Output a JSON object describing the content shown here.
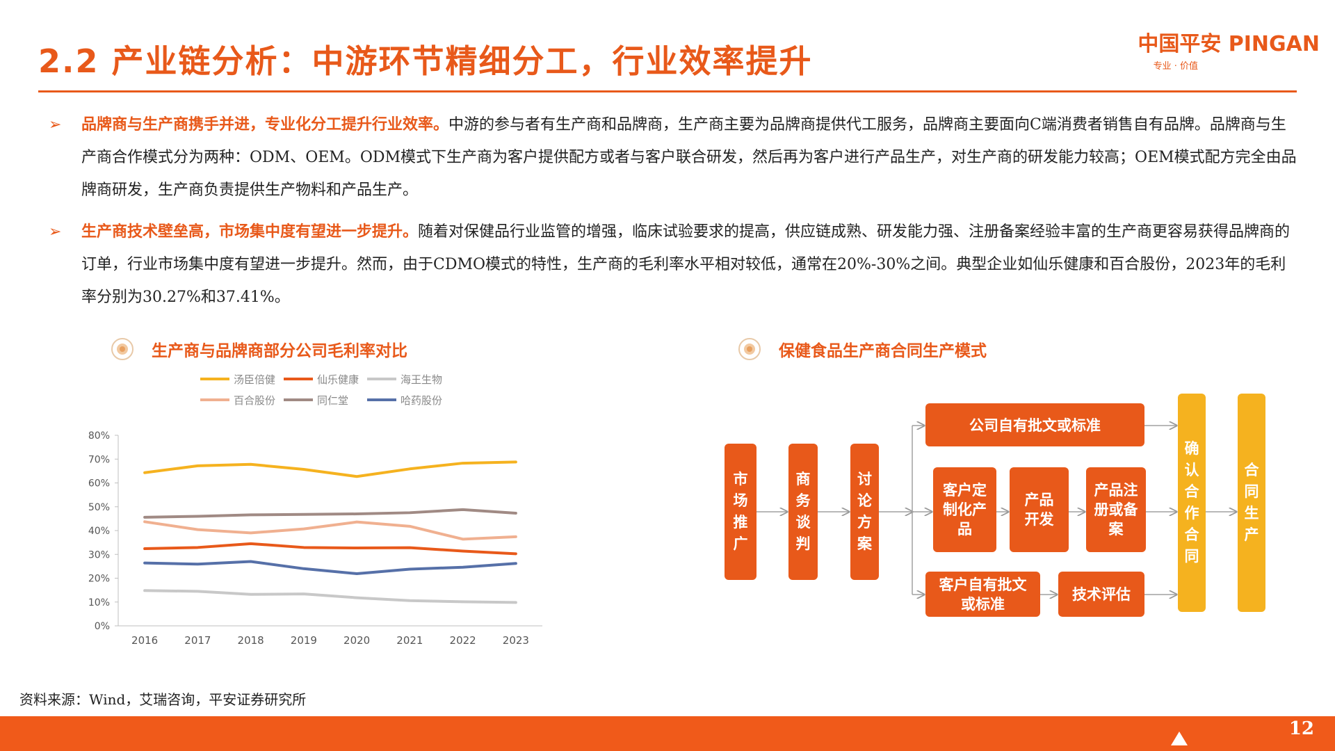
{
  "header": {
    "title": "2.2 产业链分析：中游环节精细分工，行业效率提升",
    "logo_main": "中国平安 PINGAN",
    "logo_sub": "专业 · 价值"
  },
  "bullets": [
    {
      "marker": "➢",
      "highlight": "品牌商与生产商携手并进，专业化分工提升行业效率。",
      "text": "中游的参与者有生产商和品牌商，生产商主要为品牌商提供代工服务，品牌商主要面向C端消费者销售自有品牌。品牌商与生产商合作模式分为两种：ODM、OEM。ODM模式下生产商为客户提供配方或者与客户联合研发，然后再为客户进行产品生产，对生产商的研发能力较高；OEM模式配方完全由品牌商研发，生产商负责提供生产物料和产品生产。"
    },
    {
      "marker": "➢",
      "highlight": "生产商技术壁垒高，市场集中度有望进一步提升。",
      "text": "随着对保健品行业监管的增强，临床试验要求的提高，供应链成熟、研发能力强、注册备案经验丰富的生产商更容易获得品牌商的订单，行业市场集中度有望进一步提升。然而，由于CDMO模式的特性，生产商的毛利率水平相对较低，通常在20%-30%之间。典型企业如仙乐健康和百合股份，2023年的毛利率分别为30.27%和37.41%。"
    }
  ],
  "left_section": {
    "heading": "生产商与品牌商部分公司毛利率对比"
  },
  "right_section": {
    "heading": "保健食品生产商合同生产模式"
  },
  "chart_data": {
    "type": "line",
    "x": [
      "2016",
      "2017",
      "2018",
      "2019",
      "2020",
      "2021",
      "2022",
      "2023"
    ],
    "ylim": [
      0,
      80
    ],
    "yticks": [
      "0%",
      "10%",
      "20%",
      "30%",
      "40%",
      "50%",
      "60%",
      "70%",
      "80%"
    ],
    "grid": false,
    "legend_position": "top",
    "series": [
      {
        "name": "汤臣倍健",
        "color": "#f5b21f",
        "values": [
          64.3,
          67.2,
          67.8,
          65.7,
          62.7,
          65.9,
          68.3,
          68.8
        ]
      },
      {
        "name": "仙乐健康",
        "color": "#e8591a",
        "values": [
          32.4,
          32.9,
          34.5,
          32.9,
          32.7,
          32.8,
          31.4,
          30.27
        ]
      },
      {
        "name": "海王生物",
        "color": "#c8c8c8",
        "values": [
          14.8,
          14.5,
          13.2,
          13.4,
          11.8,
          10.6,
          10.1,
          9.8
        ]
      },
      {
        "name": "百合股份",
        "color": "#f0b090",
        "values": [
          43.7,
          40.4,
          39.0,
          40.7,
          43.6,
          41.8,
          36.4,
          37.41
        ]
      },
      {
        "name": "同仁堂",
        "color": "#a08a84",
        "values": [
          45.6,
          46.0,
          46.6,
          46.8,
          47.0,
          47.5,
          48.8,
          47.3
        ]
      },
      {
        "name": "哈药股份",
        "color": "#5670a8",
        "values": [
          26.4,
          25.9,
          27.0,
          24.0,
          21.9,
          23.8,
          24.6,
          26.2
        ]
      }
    ]
  },
  "flowchart": {
    "market_promotion": "市场推广",
    "business_negotiation": "商务谈判",
    "discuss_plan": "讨论方案",
    "company_own_standard": "公司自有批文或标准",
    "customized_product": "客户定制化产品",
    "product_development": "产品开发",
    "product_registration": "产品注册或备案",
    "customer_own_standard": "客户自有批文或标准",
    "tech_evaluation": "技术评估",
    "confirm_contract": "确认合作合同",
    "contract_production": "合同生产"
  },
  "footer": {
    "source": "资料来源：Wind，艾瑞咨询，平安证券研究所",
    "page_number": "12"
  }
}
